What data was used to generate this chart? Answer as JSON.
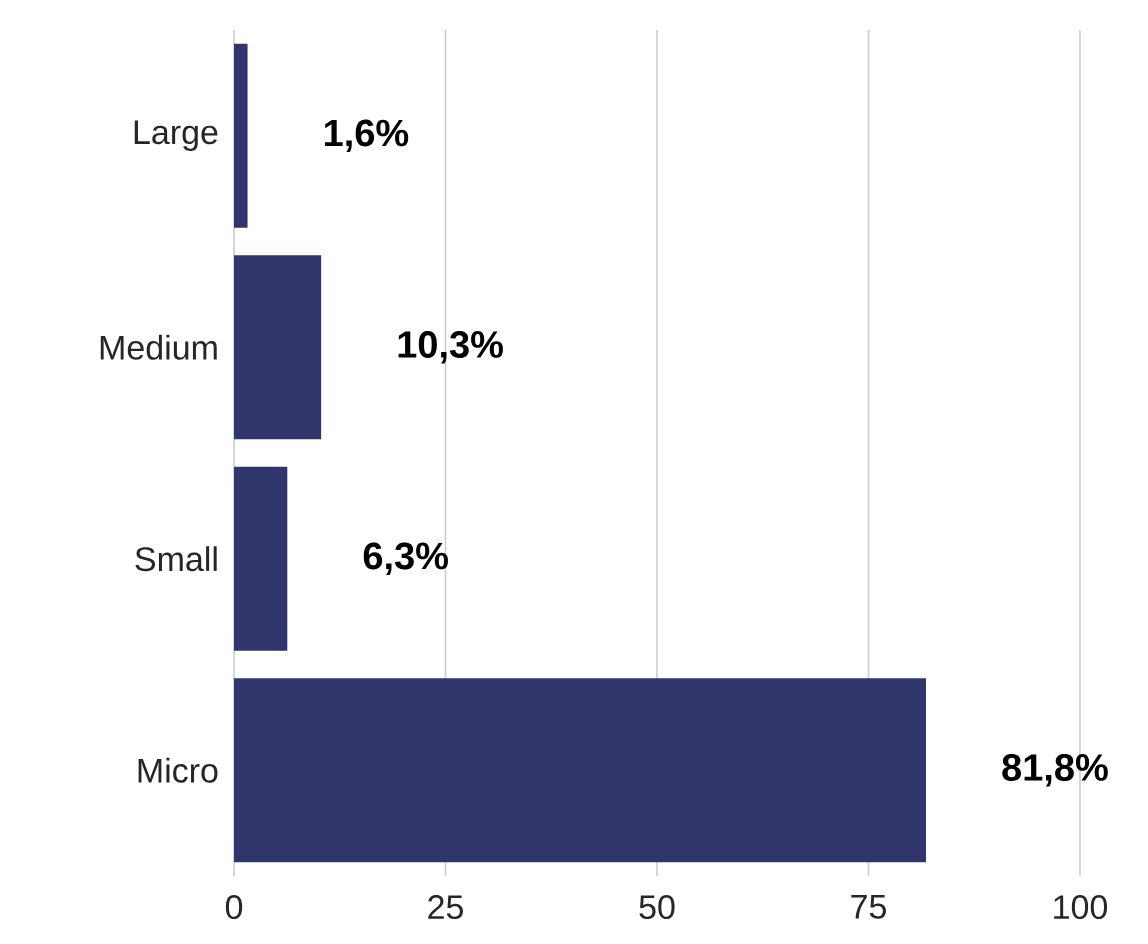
{
  "chart_data": {
    "type": "bar",
    "orientation": "horizontal",
    "categories": [
      "Large",
      "Medium",
      "Small",
      "Micro"
    ],
    "values": [
      1.6,
      10.3,
      6.3,
      81.8
    ],
    "value_labels": [
      "1,6%",
      "10,3%",
      "6,3%",
      "81,8%"
    ],
    "color": "#30356b",
    "xlim": [
      0,
      100
    ],
    "xticks": [
      0,
      25,
      50,
      75,
      100
    ],
    "grid": "x"
  }
}
